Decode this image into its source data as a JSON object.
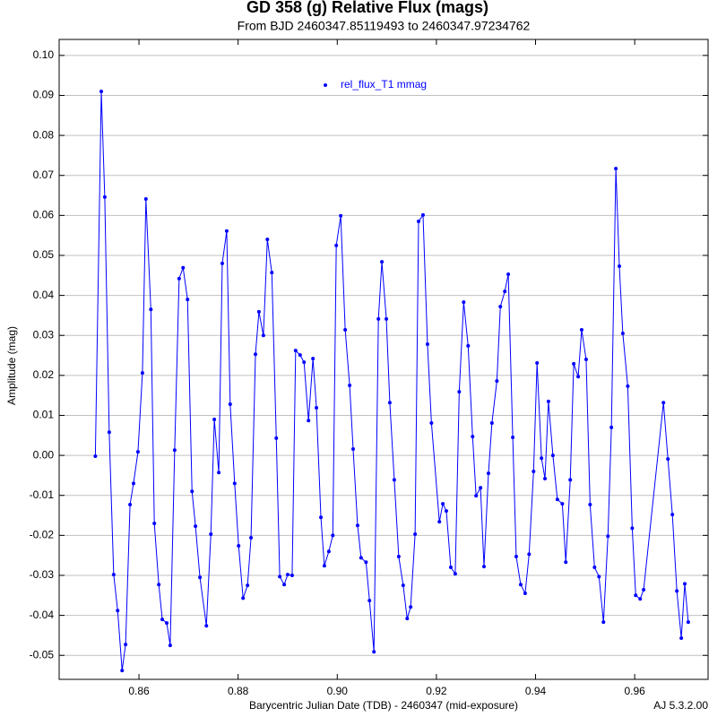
{
  "chart_data": {
    "type": "line",
    "title": "GD 358 (g) Relative Flux (mags)",
    "subtitle": "From BJD 2460347.85119493 to 2460347.97234762",
    "x_label": "Barycentric Julian Date (TDB) - 2460347 (mid-exposure)",
    "y_label": "Amplitude (mag)",
    "footer": "AJ 5.3.2.00",
    "x": [
      0.8512,
      0.8524,
      0.8531,
      0.854,
      0.8549,
      0.8557,
      0.8566,
      0.8573,
      0.8582,
      0.8589,
      0.8598,
      0.8607,
      0.8614,
      0.8624,
      0.8631,
      0.864,
      0.8647,
      0.8656,
      0.8663,
      0.8672,
      0.8681,
      0.8689,
      0.8698,
      0.8707,
      0.8714,
      0.8723,
      0.8736,
      0.8745,
      0.8752,
      0.8761,
      0.8768,
      0.8777,
      0.8784,
      0.8793,
      0.8801,
      0.881,
      0.8819,
      0.8826,
      0.8835,
      0.8842,
      0.8851,
      0.8859,
      0.8868,
      0.8877,
      0.8884,
      0.8893,
      0.89,
      0.8909,
      0.8916,
      0.8925,
      0.8933,
      0.8942,
      0.8951,
      0.8958,
      0.8967,
      0.8974,
      0.8983,
      0.8991,
      0.8998,
      0.9007,
      0.9016,
      0.9025,
      0.9032,
      0.9041,
      0.9048,
      0.9058,
      0.9065,
      0.9074,
      0.9083,
      0.909,
      0.9099,
      0.9106,
      0.9115,
      0.9124,
      0.9133,
      0.9141,
      0.9148,
      0.9157,
      0.9164,
      0.9173,
      0.9182,
      0.919,
      0.9206,
      0.9213,
      0.922,
      0.9229,
      0.9238,
      0.9246,
      0.9255,
      0.9264,
      0.9273,
      0.928,
      0.9289,
      0.9296,
      0.9305,
      0.9312,
      0.9322,
      0.9329,
      0.9338,
      0.9345,
      0.9354,
      0.9361,
      0.937,
      0.9379,
      0.9387,
      0.9396,
      0.9403,
      0.9412,
      0.9419,
      0.9426,
      0.9435,
      0.9444,
      0.9454,
      0.9461,
      0.947,
      0.9477,
      0.9486,
      0.9493,
      0.9502,
      0.951,
      0.9519,
      0.9528,
      0.9537,
      0.9546,
      0.9553,
      0.9562,
      0.9569,
      0.9576,
      0.9586,
      0.9595,
      0.9602,
      0.9611,
      0.9618,
      0.9658,
      0.9667,
      0.9676,
      0.9685,
      0.9694,
      0.9701,
      0.9708
    ],
    "series": [
      {
        "name": "rel_flux_T1 mmag",
        "color": "#0000ff",
        "values": [
          -0.0002,
          0.091,
          0.0646,
          0.0058,
          -0.0298,
          -0.0388,
          -0.0538,
          -0.0473,
          -0.0123,
          -0.007,
          0.0009,
          0.0206,
          0.0641,
          0.0365,
          -0.017,
          -0.0323,
          -0.041,
          -0.0419,
          -0.0475,
          0.0013,
          0.0442,
          0.0469,
          0.039,
          -0.009,
          -0.0177,
          -0.0305,
          -0.0426,
          -0.0197,
          0.009,
          -0.0043,
          0.048,
          0.0561,
          0.0128,
          -0.007,
          -0.0226,
          -0.0357,
          -0.0325,
          -0.0206,
          0.0253,
          0.0359,
          0.03,
          0.054,
          0.0457,
          0.0043,
          -0.0303,
          -0.0323,
          -0.0298,
          -0.03,
          0.0262,
          0.0251,
          0.0233,
          0.0087,
          0.0242,
          0.0119,
          -0.0155,
          -0.0276,
          -0.024,
          -0.02,
          0.0525,
          0.0599,
          0.0314,
          0.0175,
          0.0016,
          -0.0175,
          -0.0256,
          -0.0267,
          -0.0363,
          -0.0491,
          0.0341,
          0.0484,
          0.0341,
          0.0132,
          -0.0061,
          -0.0253,
          -0.0325,
          -0.0408,
          -0.0379,
          -0.0197,
          0.0585,
          0.0601,
          0.0278,
          0.0081,
          -0.0166,
          -0.0121,
          -0.0139,
          -0.028,
          -0.0296,
          0.0159,
          0.0383,
          0.0274,
          0.0047,
          -0.0101,
          -0.0081,
          -0.0278,
          -0.0045,
          0.0081,
          0.0186,
          0.0372,
          0.041,
          0.0453,
          0.0045,
          -0.0253,
          -0.0323,
          -0.0345,
          -0.0247,
          -0.004,
          0.0231,
          -0.0007,
          -0.0058,
          0.0135,
          0,
          -0.011,
          -0.0121,
          -0.0267,
          -0.0061,
          0.0229,
          0.0197,
          0.0314,
          0.024,
          -0.0123,
          -0.028,
          -0.0303,
          -0.0417,
          -0.0202,
          0.007,
          0.0717,
          0.0473,
          0.0305,
          0.0173,
          -0.0182,
          -0.035,
          -0.0359,
          -0.0336,
          0.0132,
          -0.0009,
          -0.0148,
          -0.0339,
          -0.0457,
          -0.0321,
          -0.0417
        ]
      }
    ],
    "xlim": [
      0.8439,
      0.9748
    ],
    "ylim": [
      -0.056,
      0.104
    ],
    "xticks": [
      0.86,
      0.88,
      {
        "value": 0.9,
        "label": "0.90"
      },
      0.92,
      0.94,
      0.96
    ],
    "yticks": [
      {
        "value": 0.1,
        "label": "0.10"
      },
      0.09,
      0.08,
      0.07,
      0.06,
      0.05,
      0.04,
      0.03,
      0.02,
      0.01,
      {
        "value": 0,
        "label": "0.00"
      },
      -0.01,
      -0.02,
      -0.03,
      -0.04,
      -0.05
    ],
    "grid": true,
    "legend": "top-center"
  }
}
